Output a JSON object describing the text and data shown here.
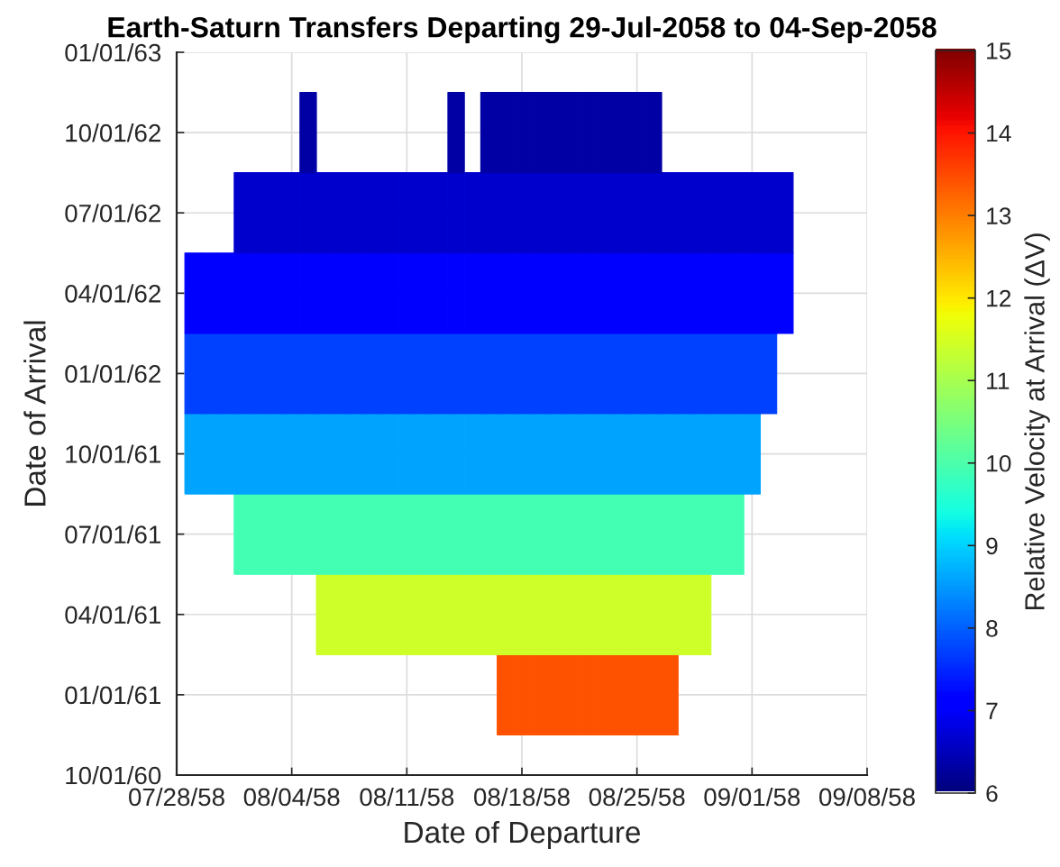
{
  "chart_data": {
    "type": "heatmap",
    "title": "Earth-Saturn Transfers Departing 29-Jul-2058 to 04-Sep-2058",
    "xlabel": "Date of Departure",
    "ylabel": "Date of Arrival",
    "clabel": "Relative Velocity at Arrival (ΔV)",
    "x": [
      "2058-07-29",
      "2058-07-30",
      "2058-07-31",
      "2058-08-01",
      "2058-08-02",
      "2058-08-03",
      "2058-08-04",
      "2058-08-05",
      "2058-08-06",
      "2058-08-07",
      "2058-08-08",
      "2058-08-09",
      "2058-08-10",
      "2058-08-11",
      "2058-08-12",
      "2058-08-13",
      "2058-08-14",
      "2058-08-15",
      "2058-08-16",
      "2058-08-17",
      "2058-08-18",
      "2058-08-19",
      "2058-08-20",
      "2058-08-21",
      "2058-08-22",
      "2058-08-23",
      "2058-08-24",
      "2058-08-25",
      "2058-08-26",
      "2058-08-27",
      "2058-08-28",
      "2058-08-29",
      "2058-08-30",
      "2058-08-31",
      "2058-09-01",
      "2058-09-02",
      "2058-09-03"
    ],
    "y_categories": [
      "01/01/63",
      "10/01/62",
      "07/01/62",
      "04/01/62",
      "01/01/62",
      "10/01/61",
      "07/01/61",
      "04/01/61",
      "01/01/61",
      "10/01/60"
    ],
    "cells": [
      [
        null,
        null,
        null,
        null,
        null,
        null,
        null,
        null,
        null,
        null,
        null,
        null,
        null,
        null,
        null,
        null,
        null,
        null,
        null,
        null,
        null,
        null,
        null,
        null,
        null,
        null,
        null,
        null,
        null,
        null,
        null,
        null,
        null,
        null,
        null,
        null,
        null
      ],
      [
        null,
        null,
        null,
        null,
        null,
        null,
        null,
        6.3,
        null,
        null,
        null,
        null,
        null,
        null,
        null,
        null,
        6.3,
        null,
        6.3,
        6.3,
        6.3,
        6.3,
        6.3,
        6.3,
        6.3,
        6.3,
        6.3,
        6.3,
        6.3,
        null,
        null,
        null,
        null,
        null,
        null,
        null,
        null
      ],
      [
        null,
        null,
        null,
        6.6,
        6.6,
        6.6,
        6.6,
        6.6,
        6.6,
        6.6,
        6.6,
        6.6,
        6.6,
        6.6,
        6.6,
        6.6,
        6.6,
        6.6,
        6.6,
        6.6,
        6.6,
        6.6,
        6.6,
        6.6,
        6.6,
        6.6,
        6.6,
        6.6,
        6.6,
        6.6,
        6.6,
        6.6,
        6.6,
        6.6,
        6.6,
        6.6,
        6.6
      ],
      [
        7.1,
        7.1,
        7.1,
        7.1,
        7.1,
        7.1,
        7.1,
        7.1,
        7.1,
        7.1,
        7.1,
        7.1,
        7.1,
        7.1,
        7.1,
        7.1,
        7.1,
        7.1,
        7.1,
        7.1,
        7.1,
        7.1,
        7.1,
        7.1,
        7.1,
        7.1,
        7.1,
        7.1,
        7.1,
        7.1,
        7.1,
        7.1,
        7.1,
        7.1,
        7.1,
        7.1,
        7.1
      ],
      [
        7.7,
        7.7,
        7.7,
        7.7,
        7.7,
        7.7,
        7.7,
        7.7,
        7.7,
        7.7,
        7.7,
        7.7,
        7.7,
        7.7,
        7.7,
        7.7,
        7.7,
        7.7,
        7.7,
        7.7,
        7.7,
        7.7,
        7.7,
        7.7,
        7.7,
        7.7,
        7.7,
        7.7,
        7.7,
        7.7,
        7.7,
        7.7,
        7.7,
        7.7,
        7.7,
        7.7,
        null
      ],
      [
        8.6,
        8.6,
        8.6,
        8.6,
        8.6,
        8.6,
        8.6,
        8.6,
        8.6,
        8.6,
        8.6,
        8.6,
        8.6,
        8.6,
        8.6,
        8.6,
        8.6,
        8.6,
        8.6,
        8.6,
        8.6,
        8.6,
        8.6,
        8.6,
        8.6,
        8.6,
        8.6,
        8.6,
        8.6,
        8.6,
        8.6,
        8.6,
        8.6,
        8.6,
        8.6,
        null,
        null
      ],
      [
        null,
        null,
        null,
        9.9,
        9.9,
        9.9,
        9.9,
        9.9,
        9.9,
        9.9,
        9.9,
        9.9,
        9.9,
        9.9,
        9.9,
        9.9,
        9.9,
        9.9,
        9.9,
        9.9,
        9.9,
        9.9,
        9.9,
        9.9,
        9.9,
        9.9,
        9.9,
        9.9,
        9.9,
        9.9,
        9.9,
        9.9,
        9.9,
        9.9,
        null,
        null,
        null
      ],
      [
        null,
        null,
        null,
        null,
        null,
        null,
        null,
        null,
        11.4,
        11.4,
        11.4,
        11.4,
        11.4,
        11.4,
        11.4,
        11.4,
        11.4,
        11.4,
        11.4,
        11.4,
        11.4,
        11.4,
        11.4,
        11.4,
        11.4,
        11.4,
        11.4,
        11.4,
        11.4,
        11.4,
        11.4,
        11.4,
        null,
        null,
        null,
        null,
        null
      ],
      [
        null,
        null,
        null,
        null,
        null,
        null,
        null,
        null,
        null,
        null,
        null,
        null,
        null,
        null,
        null,
        null,
        null,
        null,
        null,
        13.4,
        13.4,
        13.4,
        13.4,
        13.4,
        13.4,
        13.4,
        13.4,
        13.4,
        13.4,
        13.4,
        null,
        null,
        null,
        null,
        null,
        null,
        null
      ],
      [
        null,
        null,
        null,
        null,
        null,
        null,
        null,
        null,
        null,
        null,
        null,
        null,
        null,
        null,
        null,
        null,
        null,
        null,
        null,
        null,
        null,
        null,
        null,
        null,
        null,
        null,
        null,
        null,
        null,
        null,
        null,
        null,
        null,
        null,
        null,
        null,
        null
      ]
    ],
    "xlim": [
      "2058-07-28",
      "2058-09-08"
    ],
    "xticks": [
      {
        "value": "2058-07-28",
        "label": "07/28/58"
      },
      {
        "value": "2058-08-04",
        "label": "08/04/58"
      },
      {
        "value": "2058-08-11",
        "label": "08/11/58"
      },
      {
        "value": "2058-08-18",
        "label": "08/18/58"
      },
      {
        "value": "2058-08-25",
        "label": "08/25/58"
      },
      {
        "value": "2058-09-01",
        "label": "09/01/58"
      },
      {
        "value": "2058-09-08",
        "label": "09/08/58"
      }
    ],
    "clim": [
      6,
      15
    ],
    "cticks": [
      6,
      7,
      8,
      9,
      10,
      11,
      12,
      13,
      14,
      15
    ],
    "grid": true
  }
}
